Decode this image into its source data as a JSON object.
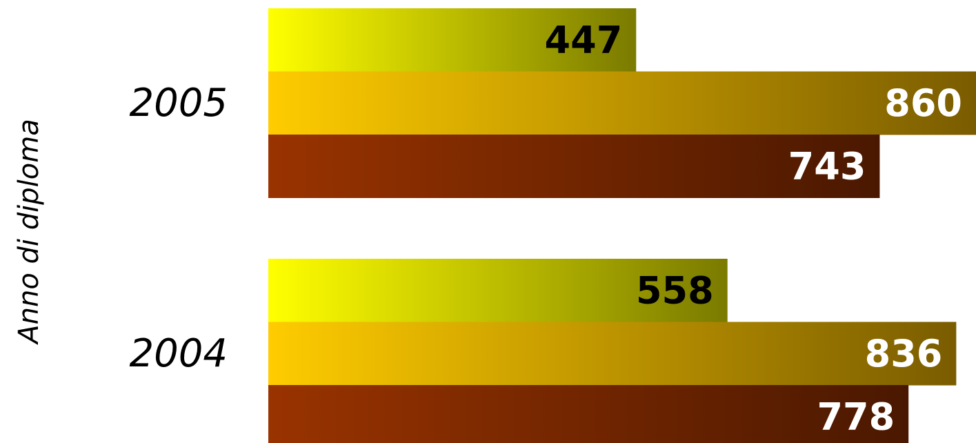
{
  "chart_data": {
    "type": "bar",
    "orientation": "horizontal",
    "ylabel": "Anno di diploma",
    "xlabel": "",
    "title": "",
    "categories": [
      "2005",
      "2004"
    ],
    "series": [
      {
        "values": [
          447,
          558
        ],
        "color_start": "#ffff00",
        "color_end": "#7a7a00",
        "label_color": "#000000"
      },
      {
        "values": [
          860,
          836
        ],
        "color_start": "#ffcc00",
        "color_end": "#7a5c00",
        "label_color": "#ffffff"
      },
      {
        "values": [
          743,
          778
        ],
        "color_start": "#993300",
        "color_end": "#4a1800",
        "label_color": "#ffffff"
      }
    ],
    "xlim": [
      0,
      860
    ],
    "grid": false,
    "legend": "none"
  }
}
